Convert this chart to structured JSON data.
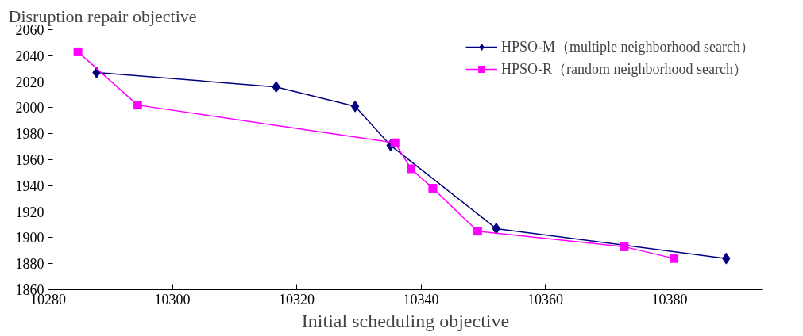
{
  "chart_data": {
    "type": "line",
    "xlabel": "Initial scheduling objective",
    "ylabel": "Disruption repair objective",
    "xlim": [
      10280,
      10395
    ],
    "ylim": [
      1860,
      2060
    ],
    "xticks": [
      10280,
      10300,
      10320,
      10340,
      10360,
      10380
    ],
    "yticks": [
      1860,
      1880,
      1900,
      1920,
      1940,
      1960,
      1980,
      2000,
      2020,
      2040,
      2060
    ],
    "grid": false,
    "legend": "top right",
    "line_style": "solid",
    "series": [
      {
        "name": "HPSO-M（multiple neighborhood search）",
        "color": "#000080",
        "marker": "diamond",
        "x": [
          10287.8,
          10316.7,
          10329.4,
          10335.1,
          10352.1,
          10389.1
        ],
        "values": [
          2027,
          2016,
          2001,
          1971,
          1907,
          1884
        ]
      },
      {
        "name": "HPSO-R（random neighborhood search）",
        "color": "#ff00ff",
        "marker": "square",
        "x": [
          10284.8,
          10294.4,
          10335.8,
          10338.4,
          10341.9,
          10349.1,
          10372.7,
          10380.7
        ],
        "values": [
          2043,
          2002,
          1973,
          1953,
          1938,
          1905,
          1893,
          1884
        ]
      }
    ]
  }
}
